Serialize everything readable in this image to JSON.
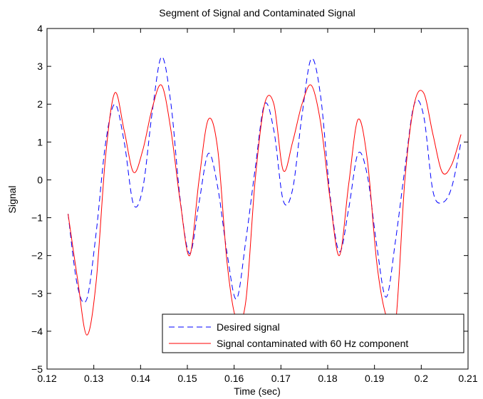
{
  "chart_data": {
    "type": "line",
    "title": "Segment of Signal and Contaminated Signal",
    "xlabel": "Time (sec)",
    "ylabel": "Signal",
    "xlim": [
      0.12,
      0.21
    ],
    "ylim": [
      -5,
      4
    ],
    "xticks": [
      0.12,
      0.13,
      0.14,
      0.15,
      0.16,
      0.17,
      0.18,
      0.19,
      0.2,
      0.21
    ],
    "xtick_labels": [
      "0.12",
      "0.13",
      "0.14",
      "0.15",
      "0.16",
      "0.17",
      "0.18",
      "0.19",
      "0.2",
      "0.21"
    ],
    "yticks": [
      -5,
      -4,
      -3,
      -2,
      -1,
      0,
      1,
      2,
      3,
      4
    ],
    "ytick_labels": [
      "−5",
      "−4",
      "−3",
      "−2",
      "−1",
      "0",
      "1",
      "2",
      "3",
      "4"
    ],
    "grid": false,
    "legend_position": "bottom-right",
    "series": [
      {
        "name": "Desired signal",
        "color": "#0000ff",
        "style": "dashed",
        "x": [
          0.1245,
          0.1265,
          0.1285,
          0.1305,
          0.1325,
          0.1345,
          0.1365,
          0.1385,
          0.1405,
          0.1425,
          0.1445,
          0.1465,
          0.1485,
          0.1505,
          0.1525,
          0.1545,
          0.1565,
          0.1585,
          0.1605,
          0.1625,
          0.1645,
          0.1665,
          0.1685,
          0.1705,
          0.1725,
          0.1745,
          0.1765,
          0.1785,
          0.1805,
          0.1825,
          0.1845,
          0.1865,
          0.1885,
          0.1905,
          0.1925,
          0.1945,
          0.1965,
          0.1985,
          0.2005,
          0.2025,
          0.2045,
          0.2065,
          0.2085
        ],
        "y": [
          -0.9,
          -2.8,
          -3.15,
          -1.4,
          0.95,
          2.0,
          1.0,
          -0.65,
          -0.2,
          1.8,
          3.25,
          2.0,
          -0.55,
          -1.95,
          -0.6,
          0.7,
          -0.2,
          -1.95,
          -3.15,
          -1.6,
          0.3,
          2.0,
          1.3,
          -0.55,
          -0.25,
          1.7,
          3.2,
          2.2,
          -0.4,
          -1.9,
          -0.75,
          0.7,
          0.1,
          -1.75,
          -3.1,
          -1.6,
          0.3,
          2.0,
          1.7,
          -0.3,
          -0.6,
          -0.2,
          1.0
        ]
      },
      {
        "name": "Signal contaminated with 60 Hz component",
        "color": "#ff0000",
        "style": "solid",
        "x": [
          0.1245,
          0.1265,
          0.1285,
          0.1305,
          0.1325,
          0.1345,
          0.1365,
          0.1385,
          0.1405,
          0.1425,
          0.1445,
          0.1465,
          0.1485,
          0.1505,
          0.1525,
          0.1545,
          0.1565,
          0.1585,
          0.1605,
          0.1625,
          0.1645,
          0.1665,
          0.1685,
          0.1705,
          0.1725,
          0.1745,
          0.1765,
          0.1785,
          0.1805,
          0.1825,
          0.1845,
          0.1865,
          0.1885,
          0.1905,
          0.1925,
          0.1945,
          0.1965,
          0.1985,
          0.2005,
          0.2025,
          0.2045,
          0.2065,
          0.2085
        ],
        "y": [
          -0.9,
          -2.6,
          -4.1,
          -2.7,
          0.6,
          2.3,
          1.3,
          0.2,
          0.8,
          1.9,
          2.5,
          1.3,
          -0.6,
          -2.0,
          0.0,
          1.6,
          0.8,
          -2.2,
          -3.7,
          -3.2,
          0.0,
          2.0,
          2.0,
          0.25,
          1.0,
          2.0,
          2.5,
          1.5,
          -0.5,
          -2.0,
          -0.1,
          1.6,
          0.5,
          -2.2,
          -3.6,
          -3.8,
          0.0,
          2.0,
          2.3,
          1.2,
          0.2,
          0.4,
          1.2
        ]
      }
    ]
  }
}
